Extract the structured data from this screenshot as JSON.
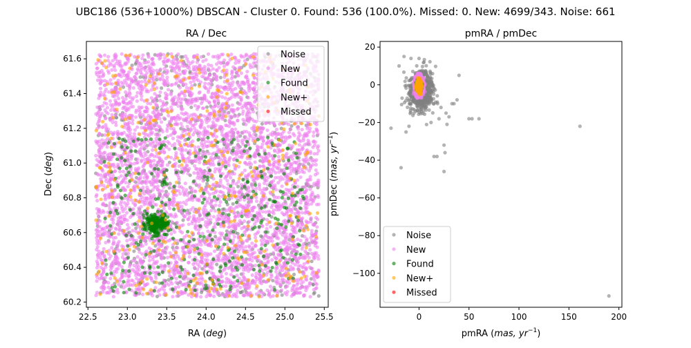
{
  "suptitle": "UBC186 (536+1000%) DBSCAN - Cluster 0. Found: 536 (100.0%). Missed: 0. New: 4699/343. Noise: 661",
  "colors": {
    "noise": "#808080",
    "new": "#ee82ee",
    "found": "#008000",
    "new_plus": "#ffa500",
    "missed": "#ff0000"
  },
  "chart_data": [
    {
      "type": "scatter",
      "title": "RA / Dec",
      "xlabel": "RA",
      "xlabel_unit": "deg",
      "ylabel": "Dec",
      "ylabel_unit": "deg",
      "xlim": [
        22.48,
        25.55
      ],
      "ylim": [
        60.17,
        61.7
      ],
      "xticks": [
        22.5,
        23.0,
        23.5,
        24.0,
        24.5,
        25.0,
        25.5
      ],
      "xtick_labels": [
        "22.5",
        "23.0",
        "23.5",
        "24.0",
        "24.5",
        "25.0",
        "25.5"
      ],
      "yticks": [
        60.2,
        60.4,
        60.6,
        60.8,
        61.0,
        61.2,
        61.4,
        61.6
      ],
      "ytick_labels": [
        "60.2",
        "60.4",
        "60.6",
        "60.8",
        "61.0",
        "61.2",
        "61.4",
        "61.6"
      ],
      "legend_position": "top-right",
      "legend": [
        "Noise",
        "New",
        "Found",
        "New+",
        "Missed"
      ],
      "series": [
        {
          "name": "Noise",
          "key": "noise",
          "count": 661,
          "distribution": "uniform",
          "x_range": [
            22.6,
            25.43
          ],
          "y_range": [
            60.23,
            61.63
          ]
        },
        {
          "name": "New",
          "key": "new",
          "count": 4699,
          "distribution": "uniform",
          "x_range": [
            22.6,
            25.43
          ],
          "y_range": [
            60.23,
            61.63
          ]
        },
        {
          "name": "Found",
          "key": "found",
          "count": 536,
          "distribution": "cluster",
          "center": [
            23.37,
            60.65
          ],
          "spread": [
            0.07,
            0.03
          ],
          "x_range": [
            22.7,
            25.25
          ],
          "y_range": [
            60.25,
            61.15
          ]
        },
        {
          "name": "New+",
          "key": "new_plus",
          "count": 343,
          "distribution": "uniform",
          "x_range": [
            22.6,
            25.43
          ],
          "y_range": [
            60.23,
            61.63
          ]
        },
        {
          "name": "Missed",
          "key": "missed",
          "count": 0,
          "distribution": "none"
        }
      ]
    },
    {
      "type": "scatter",
      "title": "pmRA / pmDec",
      "xlabel": "pmRA",
      "xlabel_unit": "mas, yr",
      "ylabel": "pmDec",
      "ylabel_unit": "mas, yr",
      "unit_exponent": "−1",
      "xlim": [
        -39,
        203
      ],
      "ylim": [
        -118,
        23
      ],
      "xticks": [
        0,
        50,
        100,
        150,
        200
      ],
      "xtick_labels": [
        "0",
        "50",
        "100",
        "150",
        "200"
      ],
      "yticks": [
        20,
        0,
        -20,
        -40,
        -60,
        -80,
        -100
      ],
      "ytick_labels": [
        "20",
        "0",
        "−20",
        "−40",
        "−60",
        "−80",
        "−100"
      ],
      "legend_position": "bottom-left",
      "legend": [
        "Noise",
        "New",
        "Found",
        "New+",
        "Missed"
      ],
      "noise_outliers": [
        [
          -28,
          -23
        ],
        [
          -18,
          -44
        ],
        [
          -15,
          15
        ],
        [
          -20,
          10
        ],
        [
          -13,
          -25
        ],
        [
          -10,
          -22
        ],
        [
          15,
          -38
        ],
        [
          18,
          -38
        ],
        [
          25,
          -46
        ],
        [
          25,
          -32
        ],
        [
          26,
          -36
        ],
        [
          30,
          -17
        ],
        [
          28,
          -21
        ],
        [
          35,
          -10
        ],
        [
          38,
          -8
        ],
        [
          40,
          5
        ],
        [
          50,
          -18
        ],
        [
          53,
          -18
        ],
        [
          60,
          -18
        ],
        [
          161,
          -22
        ],
        [
          190,
          -112
        ],
        [
          -8,
          14
        ],
        [
          0,
          14
        ],
        [
          5,
          12
        ],
        [
          22,
          -12
        ],
        [
          27,
          -15
        ],
        [
          33,
          -10
        ],
        [
          20,
          -18
        ],
        [
          12,
          -20
        ],
        [
          -5,
          -15
        ]
      ],
      "series": [
        {
          "name": "Noise",
          "key": "noise",
          "count": 661,
          "distribution": "cloud",
          "center": [
            2,
            -3
          ],
          "spread": [
            6,
            5
          ]
        },
        {
          "name": "New",
          "key": "new",
          "count": 4699,
          "distribution": "cluster",
          "center": [
            0,
            -0.5
          ],
          "spread": [
            1.6,
            2.0
          ]
        },
        {
          "name": "Found",
          "key": "found",
          "count": 536,
          "distribution": "cluster",
          "center": [
            0,
            -0.5
          ],
          "spread": [
            1.0,
            1.2
          ]
        },
        {
          "name": "New+",
          "key": "new_plus",
          "count": 343,
          "distribution": "cluster",
          "center": [
            0,
            -0.5
          ],
          "spread": [
            1.2,
            1.5
          ]
        },
        {
          "name": "Missed",
          "key": "missed",
          "count": 0,
          "distribution": "none"
        }
      ]
    }
  ]
}
